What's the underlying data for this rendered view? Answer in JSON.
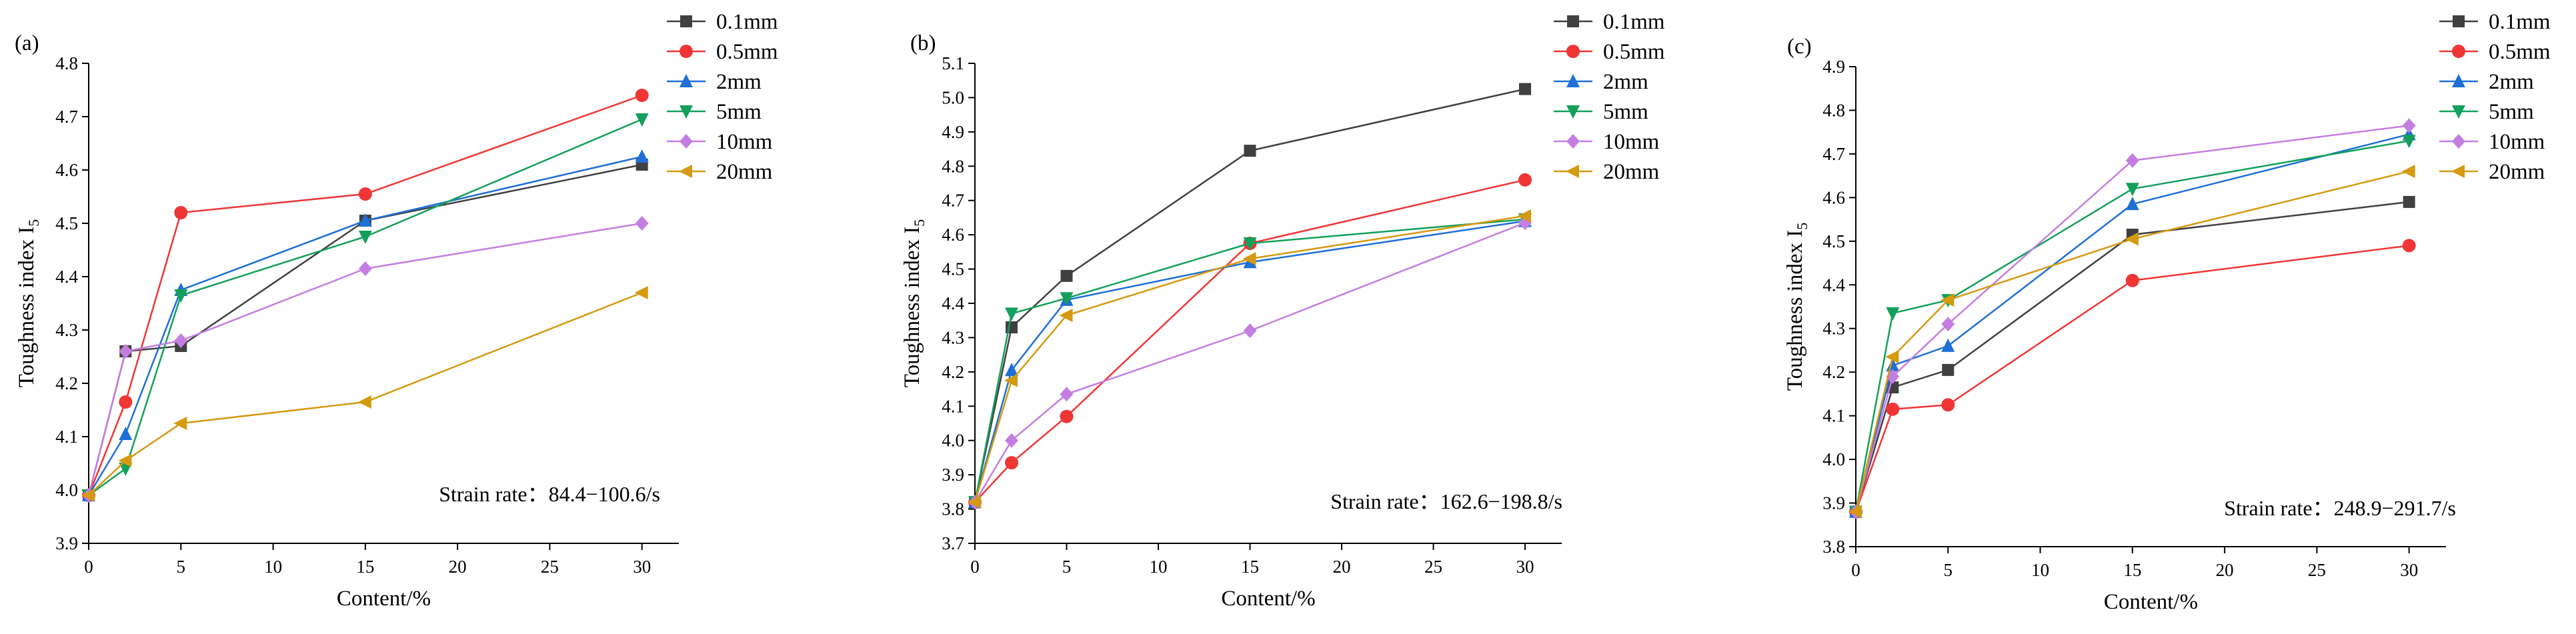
{
  "chart_data": [
    {
      "type": "line",
      "panel_label": "(a)",
      "xlabel": "Content/%",
      "ylabel": "Toughness index I",
      "ylabel_sub": "5",
      "xlim": [
        0,
        32
      ],
      "ylim": [
        3.9,
        4.8
      ],
      "x_ticks": [
        "0",
        "5",
        "10",
        "15",
        "20",
        "25",
        "30"
      ],
      "y_ticks": [
        "3.9",
        "4.0",
        "4.1",
        "4.2",
        "4.3",
        "4.4",
        "4.5",
        "4.6",
        "4.7",
        "4.8"
      ],
      "x": [
        0,
        2,
        5,
        15,
        30
      ],
      "annotation": "Strain rate：84.4−100.6/s",
      "legend_position": "top-right-outside",
      "series": [
        {
          "name": "0.1mm",
          "values": [
            3.99,
            4.26,
            4.27,
            4.505,
            4.61
          ]
        },
        {
          "name": "0.5mm",
          "values": [
            3.99,
            4.165,
            4.52,
            4.555,
            4.74
          ]
        },
        {
          "name": "2mm",
          "values": [
            3.99,
            4.105,
            4.375,
            4.505,
            4.625
          ]
        },
        {
          "name": "5mm",
          "values": [
            3.99,
            4.04,
            4.365,
            4.475,
            4.695
          ]
        },
        {
          "name": "10mm",
          "values": [
            3.99,
            4.26,
            4.28,
            4.415,
            4.5
          ]
        },
        {
          "name": "20mm",
          "values": [
            3.99,
            4.055,
            4.125,
            4.165,
            4.37
          ]
        }
      ]
    },
    {
      "type": "line",
      "panel_label": "(b)",
      "xlabel": "Content/%",
      "ylabel": "Toughness index I",
      "ylabel_sub": "5",
      "xlim": [
        0,
        32
      ],
      "ylim": [
        3.7,
        5.1
      ],
      "x_ticks": [
        "0",
        "5",
        "10",
        "15",
        "20",
        "25",
        "30"
      ],
      "y_ticks": [
        "3.7",
        "3.8",
        "3.9",
        "4.0",
        "4.1",
        "4.2",
        "4.3",
        "4.4",
        "4.5",
        "4.6",
        "4.7",
        "4.8",
        "4.9",
        "5.0",
        "5.1"
      ],
      "x": [
        0,
        2,
        5,
        15,
        30
      ],
      "annotation": "Strain rate：162.6−198.8/s",
      "legend_position": "top-right-outside",
      "series": [
        {
          "name": "0.1mm",
          "values": [
            3.82,
            4.33,
            4.48,
            4.845,
            5.025
          ]
        },
        {
          "name": "0.5mm",
          "values": [
            3.82,
            3.935,
            4.07,
            4.575,
            4.76
          ]
        },
        {
          "name": "2mm",
          "values": [
            3.82,
            4.205,
            4.41,
            4.52,
            4.64
          ]
        },
        {
          "name": "5mm",
          "values": [
            3.82,
            4.37,
            4.415,
            4.575,
            4.645
          ]
        },
        {
          "name": "10mm",
          "values": [
            3.82,
            4.0,
            4.135,
            4.32,
            4.635
          ]
        },
        {
          "name": "20mm",
          "values": [
            3.82,
            4.175,
            4.365,
            4.53,
            4.655
          ]
        }
      ]
    },
    {
      "type": "line",
      "panel_label": "(c)",
      "xlabel": "Content/%",
      "ylabel": "Toughness index I",
      "ylabel_sub": "5",
      "xlim": [
        0,
        32
      ],
      "ylim": [
        3.8,
        4.9
      ],
      "x_ticks": [
        "0",
        "5",
        "10",
        "15",
        "20",
        "25",
        "30"
      ],
      "y_ticks": [
        "3.8",
        "3.9",
        "4.0",
        "4.1",
        "4.2",
        "4.3",
        "4.4",
        "4.5",
        "4.6",
        "4.7",
        "4.8",
        "4.9"
      ],
      "x": [
        0,
        2,
        5,
        15,
        30
      ],
      "annotation": "Strain rate：248.9−291.7/s",
      "legend_position": "top-right-outside",
      "series": [
        {
          "name": "0.1mm",
          "values": [
            3.88,
            4.165,
            4.205,
            4.515,
            4.59
          ]
        },
        {
          "name": "0.5mm",
          "values": [
            3.88,
            4.115,
            4.125,
            4.41,
            4.49
          ]
        },
        {
          "name": "2mm",
          "values": [
            3.88,
            4.215,
            4.26,
            4.585,
            4.745
          ]
        },
        {
          "name": "5mm",
          "values": [
            3.88,
            4.335,
            4.365,
            4.62,
            4.73
          ]
        },
        {
          "name": "10mm",
          "values": [
            3.88,
            4.19,
            4.31,
            4.685,
            4.765
          ]
        },
        {
          "name": "20mm",
          "values": [
            3.88,
            4.235,
            4.365,
            4.505,
            4.66
          ]
        }
      ]
    }
  ],
  "series_styles": [
    {
      "color": "#404040",
      "marker": "square"
    },
    {
      "color": "#f03535",
      "marker": "circle"
    },
    {
      "color": "#1f6fd6",
      "marker": "triangle-up"
    },
    {
      "color": "#12a05a",
      "marker": "triangle-down"
    },
    {
      "color": "#c47ee0",
      "marker": "diamond"
    },
    {
      "color": "#d49a10",
      "marker": "triangle-left"
    }
  ]
}
